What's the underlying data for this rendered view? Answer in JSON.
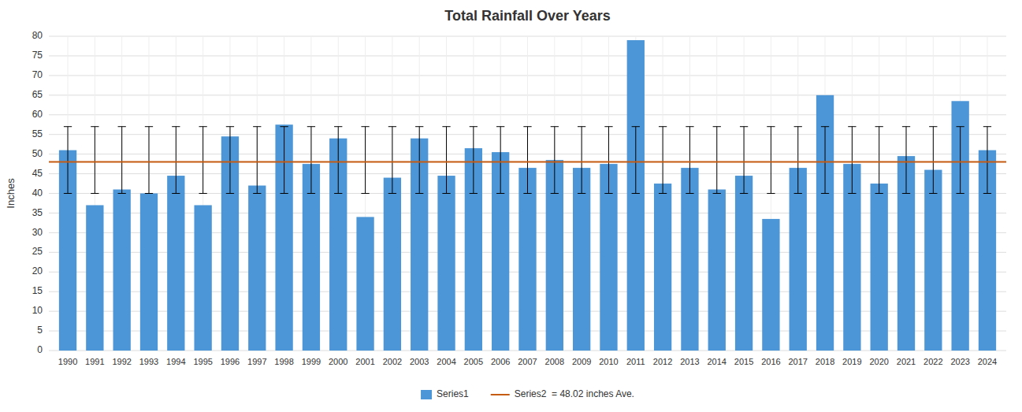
{
  "chart_data": {
    "type": "bar",
    "title": "Total Rainfall Over Years",
    "y_label": "Inches",
    "categories": [
      "1990",
      "1991",
      "1992",
      "1993",
      "1994",
      "1995",
      "1996",
      "1997",
      "1998",
      "1999",
      "2000",
      "2001",
      "2002",
      "2003",
      "2004",
      "2005",
      "2006",
      "2007",
      "2008",
      "2009",
      "2010",
      "2011",
      "2012",
      "2013",
      "2014",
      "2015",
      "2016",
      "2017",
      "2018",
      "2019",
      "2020",
      "2021",
      "2022",
      "2023",
      "2024"
    ],
    "series": [
      {
        "name": "Series1",
        "type": "bar",
        "color": "#4C96D7",
        "values": [
          51.0,
          37.0,
          41.0,
          40.0,
          44.5,
          37.0,
          54.5,
          42.0,
          57.5,
          47.5,
          54.0,
          34.0,
          44.0,
          54.0,
          44.5,
          51.5,
          50.5,
          46.5,
          48.5,
          46.5,
          47.5,
          79.0,
          42.5,
          46.5,
          41.0,
          44.5,
          33.5,
          46.5,
          65.0,
          47.5,
          42.5,
          49.5,
          46.0,
          63.5,
          51.0
        ],
        "error_top": [
          57.0,
          57.0,
          57.0,
          57.0,
          57.0,
          57.0,
          57.0,
          57.0,
          57.0,
          57.0,
          57.0,
          57.0,
          57.0,
          57.0,
          57.0,
          57.0,
          57.0,
          57.0,
          57.0,
          57.0,
          57.0,
          57.0,
          57.0,
          57.0,
          57.0,
          57.0,
          57.0,
          57.0,
          57.0,
          57.0,
          57.0,
          57.0,
          57.0,
          57.0,
          57.0
        ],
        "error_bottom": [
          40.0,
          40.0,
          40.0,
          40.0,
          40.0,
          40.0,
          40.0,
          40.0,
          40.0,
          40.0,
          40.0,
          40.0,
          40.0,
          40.0,
          40.0,
          40.0,
          40.0,
          40.0,
          40.0,
          40.0,
          40.0,
          40.0,
          40.0,
          40.0,
          40.0,
          40.0,
          40.0,
          40.0,
          40.0,
          40.0,
          40.0,
          40.0,
          40.0,
          40.0,
          40.0
        ]
      },
      {
        "name": "Series2  = 48.02 inches Ave.",
        "type": "hline",
        "color": "#C55A11",
        "value": 48.02
      }
    ],
    "ylim": [
      0,
      80
    ],
    "yticks": [
      0,
      5,
      10,
      15,
      20,
      25,
      30,
      35,
      40,
      45,
      50,
      55,
      60,
      65,
      70,
      75,
      80
    ],
    "grid": true,
    "legend": "bottom"
  }
}
